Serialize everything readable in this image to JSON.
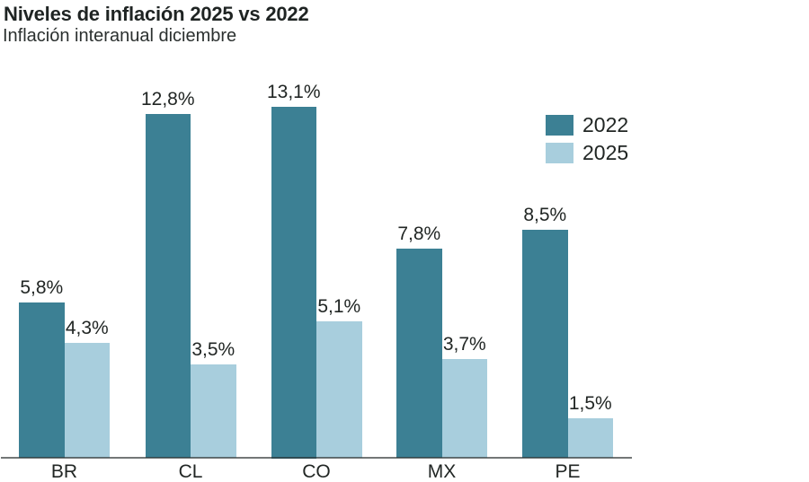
{
  "header": {
    "title": "Niveles de inflación 2025 vs 2022",
    "subtitle": "Inflación interanual diciembre"
  },
  "colors": {
    "series_2022": "#3c8094",
    "series_2025": "#a8cedd",
    "axis_line": "#6a6f70",
    "text": "#212624",
    "background": "#ffffff"
  },
  "legend": {
    "items": [
      {
        "label": "2022",
        "color": "#3c8094"
      },
      {
        "label": "2025",
        "color": "#a8cedd"
      }
    ]
  },
  "chart_data": {
    "type": "bar",
    "title": "Niveles de inflación 2025 vs 2022",
    "subtitle": "Inflación interanual diciembre",
    "categories": [
      "BR",
      "CL",
      "CO",
      "MX",
      "PE"
    ],
    "series": [
      {
        "name": "2022",
        "color": "#3c8094",
        "values": [
          5.8,
          12.8,
          13.1,
          7.8,
          8.5
        ],
        "labels": [
          "5,8%",
          "12,8%",
          "13,1%",
          "7,8%",
          "8,5%"
        ]
      },
      {
        "name": "2025",
        "color": "#a8cedd",
        "values": [
          4.3,
          3.5,
          5.1,
          3.7,
          1.5
        ],
        "labels": [
          "4,3%",
          "3,5%",
          "5,1%",
          "3,7%",
          "1,5%"
        ]
      }
    ],
    "ylabel": "",
    "xlabel": "",
    "ylim": [
      0,
      13.1
    ],
    "y_axis_visible": false,
    "grid": false,
    "value_labels_shown": true,
    "value_label_format": "decimal-comma percent",
    "legend_position": "top-right"
  }
}
